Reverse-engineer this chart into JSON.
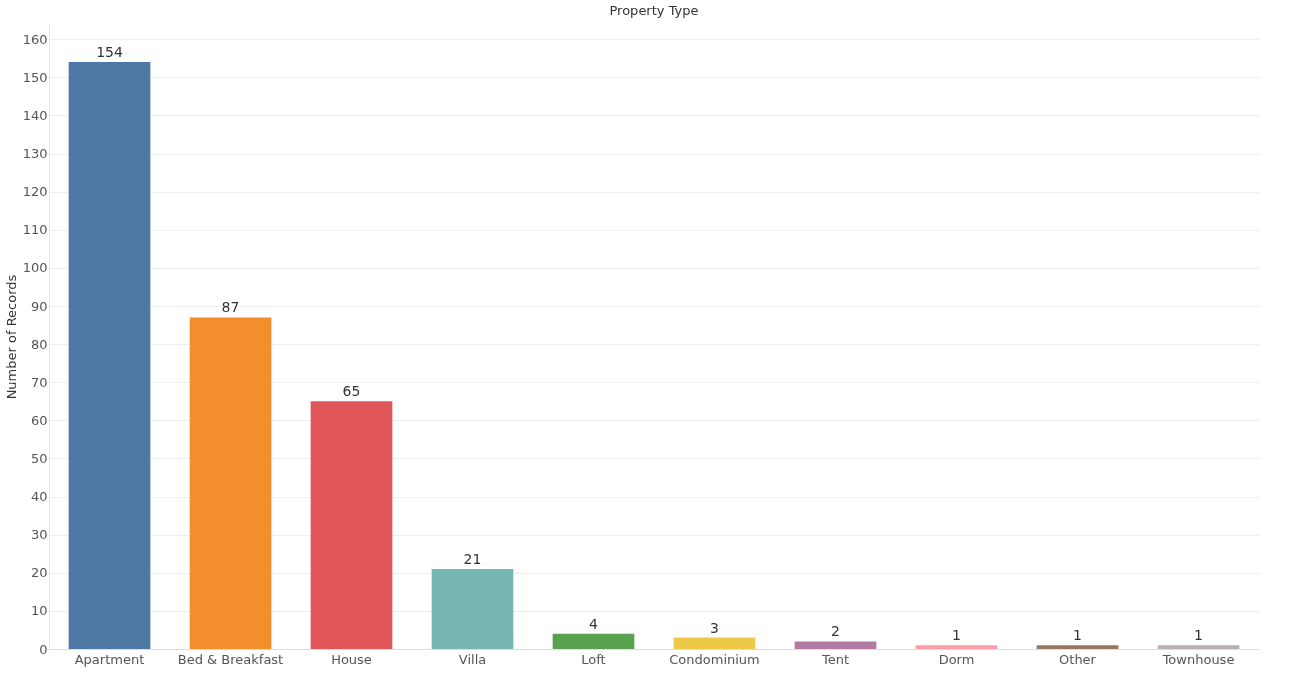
{
  "chart_data": {
    "type": "bar",
    "title": "Property Type",
    "ylabel": "Number of Records",
    "categories": [
      "Apartment",
      "Bed & Breakfast",
      "House",
      "Villa",
      "Loft",
      "Condominium",
      "Tent",
      "Dorm",
      "Other",
      "Townhouse"
    ],
    "values": [
      154,
      87,
      65,
      21,
      4,
      3,
      2,
      1,
      1,
      1
    ],
    "colors": [
      "#4e79a7",
      "#f28e2b",
      "#e15759",
      "#76b7b2",
      "#59a14f",
      "#edc948",
      "#b07aa1",
      "#ff9da7",
      "#9c755f",
      "#bab0ac"
    ],
    "ylim": [
      0,
      164
    ],
    "yticks": [
      0,
      10,
      20,
      30,
      40,
      50,
      60,
      70,
      80,
      90,
      100,
      110,
      120,
      130,
      140,
      150,
      160
    ],
    "grid": "y",
    "data_labels": true
  }
}
